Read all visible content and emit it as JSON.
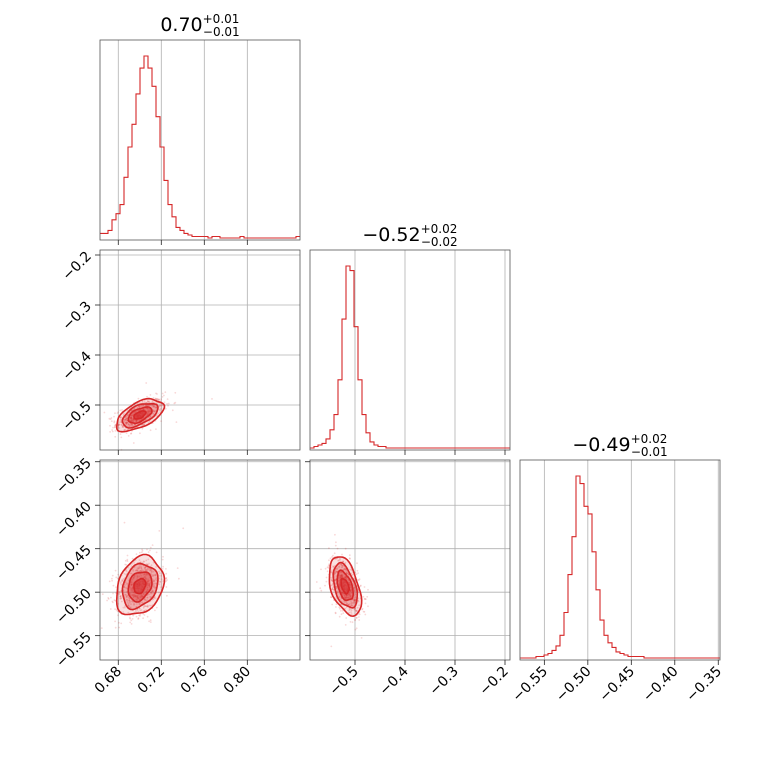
{
  "chart_data": {
    "type": "corner",
    "color": "#d62728",
    "grid": true,
    "parameters": [
      {
        "title_value": "0.70",
        "title_plus": "+0.01",
        "title_minus": "−0.01",
        "range": [
          0.663,
          0.849
        ],
        "ticks": [
          0.68,
          0.72,
          0.76,
          0.8
        ],
        "tick_labels": [
          "0.68",
          "0.72",
          "0.76",
          "0.80"
        ],
        "median": 0.7,
        "sigma": 0.011
      },
      {
        "title_value": "−0.52",
        "title_plus": "+0.02",
        "title_minus": "−0.02",
        "range": [
          -0.59,
          -0.19
        ],
        "ticks": [
          -0.5,
          -0.4,
          -0.3,
          -0.2
        ],
        "tick_labels": [
          "−0.5",
          "−0.4",
          "−0.3",
          "−0.2"
        ],
        "median": -0.52,
        "sigma": 0.016
      },
      {
        "title_value": "−0.49",
        "title_plus": "+0.02",
        "title_minus": "−0.01",
        "range": [
          -0.578,
          -0.348
        ],
        "ticks": [
          -0.55,
          -0.5,
          -0.45,
          -0.4,
          -0.35
        ],
        "tick_labels": [
          "−0.55",
          "−0.50",
          "−0.45",
          "−0.40",
          "−0.35"
        ],
        "median": -0.495,
        "sigma": 0.017
      }
    ],
    "y_tick_labels": {
      "row1": [
        "−0.2",
        "−0.3",
        "−0.4",
        "−0.5"
      ],
      "row2": [
        "−0.35",
        "−0.40",
        "−0.45",
        "−0.50",
        "−0.55"
      ]
    },
    "histograms": [
      {
        "param": 0,
        "bin_edges_start": 0.663,
        "bin_width": 0.00372,
        "counts": [
          3,
          3,
          5,
          12,
          16,
          22,
          40,
          60,
          75,
          95,
          112,
          120,
          112,
          100,
          80,
          60,
          38,
          22,
          14,
          7,
          5,
          3,
          2,
          1,
          1,
          1,
          1,
          0,
          1,
          1,
          0,
          0,
          0,
          0,
          0,
          1,
          0,
          0,
          0,
          0,
          0,
          0,
          0,
          0,
          0,
          0,
          0,
          0,
          0,
          1
        ]
      },
      {
        "param": 1,
        "bin_edges_start": -0.59,
        "bin_width": 0.008,
        "counts": [
          0,
          1,
          2,
          3,
          6,
          12,
          22,
          45,
          85,
          120,
          117,
          80,
          45,
          22,
          10,
          4,
          2,
          1,
          1,
          0,
          0,
          0,
          0,
          0,
          0,
          0,
          0,
          0,
          0,
          0,
          0,
          0,
          0,
          0,
          0,
          0,
          0,
          0,
          0,
          0,
          0,
          0,
          0,
          0,
          0,
          0,
          0,
          0,
          0,
          0
        ]
      },
      {
        "param": 2,
        "bin_edges_start": -0.578,
        "bin_width": 0.0046,
        "counts": [
          0,
          0,
          0,
          0,
          1,
          1,
          2,
          3,
          5,
          8,
          15,
          30,
          55,
          80,
          120,
          115,
          100,
          95,
          70,
          45,
          25,
          15,
          10,
          7,
          4,
          3,
          2,
          1,
          1,
          1,
          1,
          0,
          0,
          0,
          0,
          0,
          0,
          0,
          0,
          0,
          0,
          0,
          0,
          0,
          0,
          0,
          0,
          0,
          0,
          0
        ]
      }
    ],
    "pairs": [
      {
        "x_param": 0,
        "y_param": 1,
        "mean": [
          0.7,
          -0.52
        ],
        "sigma": [
          0.011,
          0.016
        ],
        "rho": 0.55
      },
      {
        "x_param": 0,
        "y_param": 2,
        "mean": [
          0.7,
          -0.493
        ],
        "sigma": [
          0.011,
          0.017
        ],
        "rho": 0.25
      },
      {
        "x_param": 1,
        "y_param": 2,
        "mean": [
          -0.52,
          -0.493
        ],
        "sigma": [
          0.016,
          0.017
        ],
        "rho": -0.45
      }
    ]
  }
}
